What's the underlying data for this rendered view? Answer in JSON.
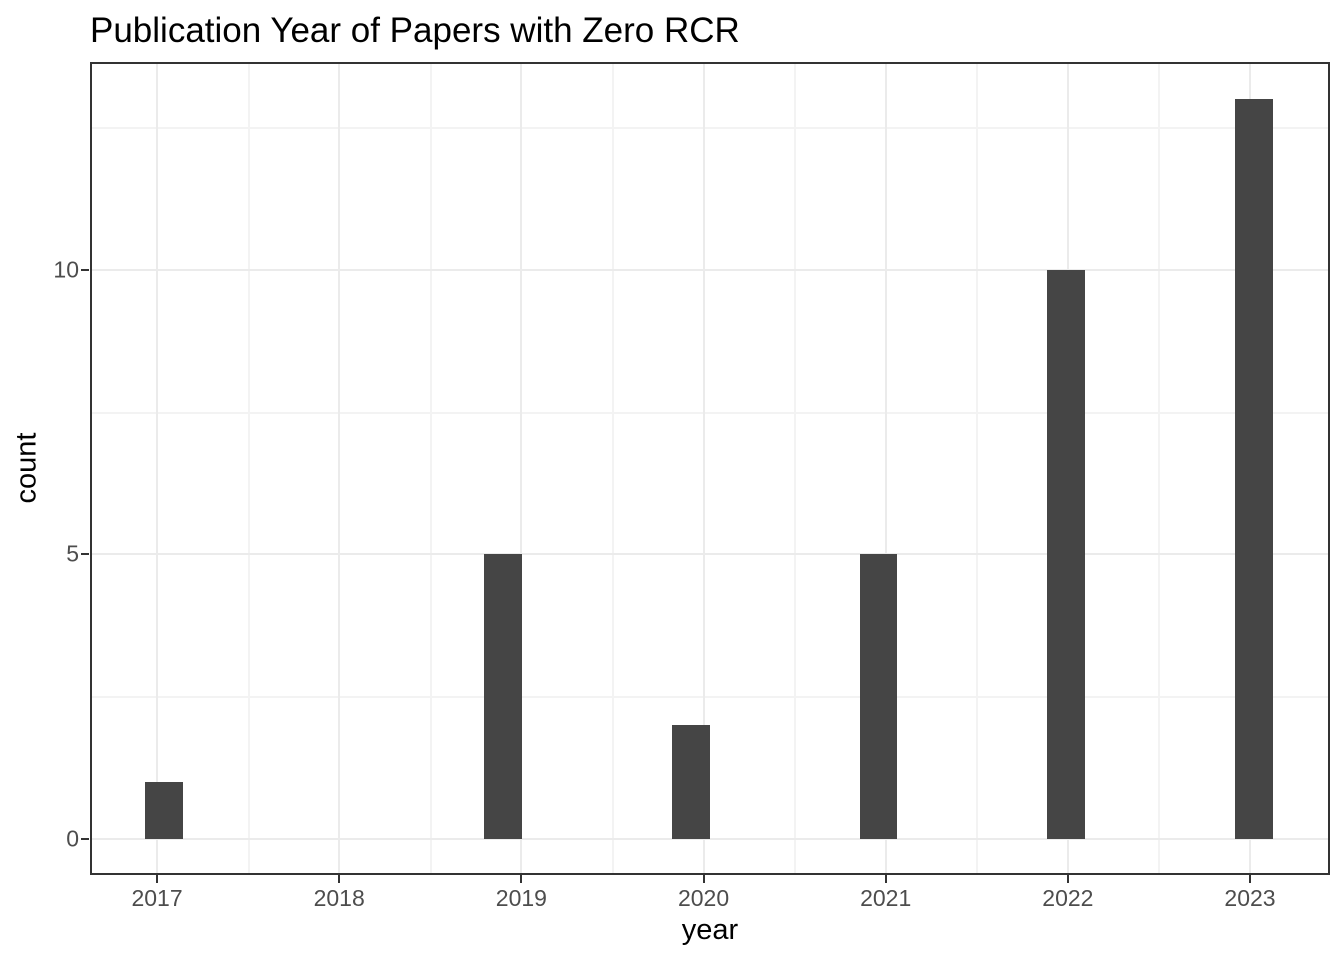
{
  "chart_data": {
    "type": "histogram",
    "title": "Publication Year of Papers with Zero RCR",
    "xlabel": "year",
    "ylabel": "count",
    "categories": [
      2017,
      2018,
      2019,
      2020,
      2021,
      2022,
      2023
    ],
    "values": [
      1,
      0,
      5,
      2,
      5,
      10,
      13
    ],
    "bars": [
      {
        "x_center": 2017.04,
        "count": 1
      },
      {
        "x_center": 2018.9,
        "count": 5
      },
      {
        "x_center": 2019.93,
        "count": 2
      },
      {
        "x_center": 2020.96,
        "count": 5
      },
      {
        "x_center": 2021.99,
        "count": 10
      },
      {
        "x_center": 2023.02,
        "count": 13
      }
    ],
    "bar_width": 0.207,
    "x_ticks": [
      2017,
      2018,
      2019,
      2020,
      2021,
      2022,
      2023
    ],
    "y_ticks": [
      0,
      5,
      10
    ],
    "x_minor_gridlines": [
      2017.5,
      2018.5,
      2019.5,
      2020.5,
      2021.5,
      2022.5
    ],
    "y_minor_gridlines": [
      2.5,
      7.5,
      12.5
    ],
    "xlim": [
      2016.632,
      2023.439
    ],
    "ylim": [
      -0.632,
      13.65
    ],
    "grid": true,
    "legend": "none",
    "colors": {
      "bar_fill": "#454545",
      "panel_border": "#333333",
      "grid_major": "#ebebeb",
      "grid_minor": "#f3f3f3",
      "tick_label": "#4d4d4d",
      "title_text": "#000000"
    }
  }
}
